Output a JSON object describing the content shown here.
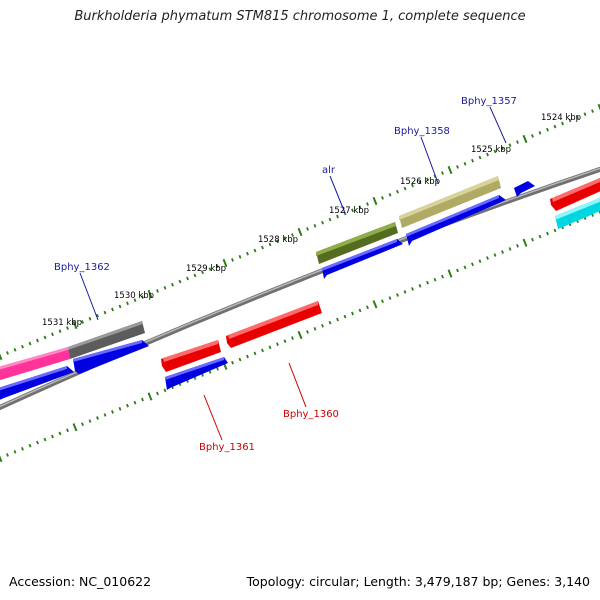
{
  "title": "Burkholderia phymatum STM815 chromosome 1, complete sequence",
  "footer": {
    "accession": "Accession: NC_010622",
    "summary": "Topology: circular; Length: 3,479,187 bp; Genes: 3,140"
  },
  "colors": {
    "backbone": "#8a8a8a",
    "tick": "#2e7d16",
    "label_forward": "#1a1aa0",
    "label_reverse": "#cc0000"
  },
  "scale_labels": [
    "1531 kbp",
    "1530 kbp",
    "1529 kbp",
    "1528 kbp",
    "1527 kbp",
    "1526 kbp",
    "1525 kbp",
    "1524 kbp"
  ],
  "gene_labels": [
    {
      "text": "Bphy_1357",
      "strand": "forward"
    },
    {
      "text": "Bphy_1358",
      "strand": "forward"
    },
    {
      "text": "alr",
      "strand": "forward"
    },
    {
      "text": "Bphy_1362",
      "strand": "forward"
    },
    {
      "text": "Bphy_1360",
      "strand": "reverse"
    },
    {
      "text": "Bphy_1361",
      "strand": "reverse"
    }
  ],
  "features": [
    {
      "kind": "gene",
      "color": "#ff3399"
    },
    {
      "kind": "gene",
      "color": "#666666"
    },
    {
      "kind": "gene",
      "color": "#6b8e23"
    },
    {
      "kind": "gene",
      "color": "#bdb76b"
    },
    {
      "kind": "cds",
      "color": "#0000ee"
    },
    {
      "kind": "cds",
      "color": "#ee0000"
    },
    {
      "kind": "other",
      "color": "#00e5ee"
    }
  ]
}
